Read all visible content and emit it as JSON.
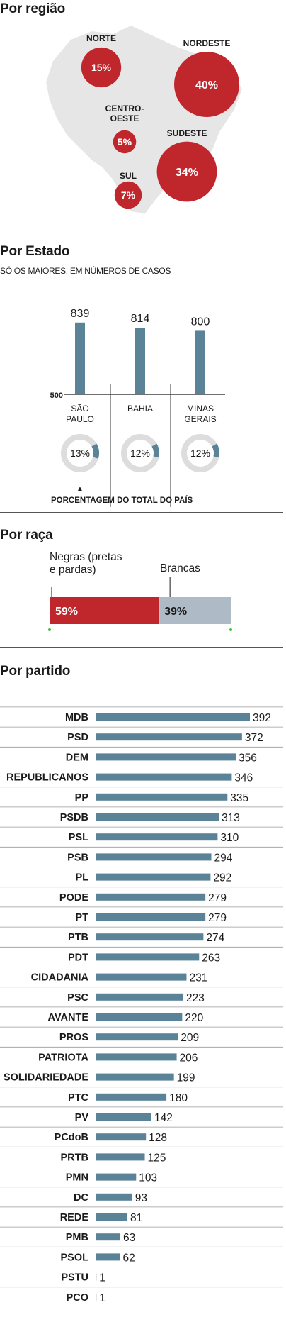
{
  "colors": {
    "red": "#c0272d",
    "blue": "#5a8398",
    "gray": "#aebbc7",
    "map": "#e6e6e6",
    "ring": "#dddddd"
  },
  "region": {
    "title": "Por região",
    "items": [
      {
        "label": "NORTE",
        "pct": "15%",
        "value": 15
      },
      {
        "label": "NORDESTE",
        "pct": "40%",
        "value": 40
      },
      {
        "label": "CENTRO-\nOESTE",
        "pct": "5%",
        "value": 5
      },
      {
        "label": "SUDESTE",
        "pct": "34%",
        "value": 34
      },
      {
        "label": "SUL",
        "pct": "7%",
        "value": 7
      }
    ]
  },
  "state": {
    "title": "Por Estado",
    "subtitle": "SÓ OS MAIORES, EM NÚMEROS DE CASOS",
    "axis_min_label": "500",
    "footnote": "PORCENTAGEM DO TOTAL DO PAÍS",
    "footnote_arrow": "▲",
    "states": [
      {
        "name": "SÃO\nPAULO",
        "count": "839",
        "share": "13%",
        "share_value": 13
      },
      {
        "name": "BAHIA",
        "count": "814",
        "share": "12%",
        "share_value": 12
      },
      {
        "name": "MINAS\nGERAIS",
        "count": "800",
        "share": "12%",
        "share_value": 12
      }
    ]
  },
  "race": {
    "title": "Por raça",
    "black_label": "Negras (pretas\ne pardas)",
    "white_label": "Brancas",
    "black_pct": "59%",
    "black_value": 59,
    "white_pct": "39%",
    "white_value": 39
  },
  "party": {
    "title": "Por partido"
  },
  "chart_data": {
    "type": "bar",
    "orientation": "horizontal",
    "title": "Por partido",
    "categories": [
      "MDB",
      "PSD",
      "DEM",
      "REPUBLICANOS",
      "PP",
      "PSDB",
      "PSL",
      "PSB",
      "PL",
      "PODE",
      "PT",
      "PTB",
      "PDT",
      "CIDADANIA",
      "PSC",
      "AVANTE",
      "PROS",
      "PATRIOTA",
      "SOLIDARIEDADE",
      "PTC",
      "PV",
      "PCdoB",
      "PRTB",
      "PMN",
      "DC",
      "REDE",
      "PMB",
      "PSOL",
      "PSTU",
      "PCO"
    ],
    "values": [
      392,
      372,
      356,
      346,
      335,
      313,
      310,
      294,
      292,
      279,
      279,
      274,
      263,
      231,
      223,
      220,
      209,
      206,
      199,
      180,
      142,
      128,
      125,
      103,
      93,
      81,
      63,
      62,
      1,
      1
    ]
  }
}
